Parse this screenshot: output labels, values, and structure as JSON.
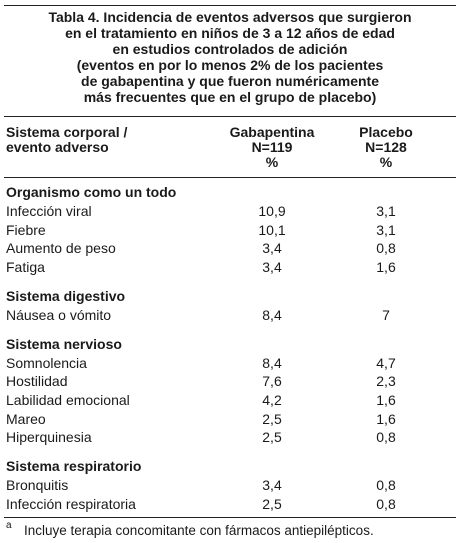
{
  "title": {
    "lines": [
      "Tabla 4. Incidencia de eventos adversos que surgieron",
      "en el tratamiento en niños de 3 a 12 años de edad",
      "en estudios controlados de adición",
      "(eventos en por lo menos 2% de los pacientes",
      "de gabapentina y que fueron numéricamente",
      "más frecuentes que en el grupo de placebo)"
    ]
  },
  "table": {
    "header": [
      [
        "Sistema corporal /",
        "evento adverso"
      ],
      [
        "Gabapentina",
        "N=119",
        "%"
      ],
      [
        "Placebo",
        "N=128",
        "%"
      ]
    ],
    "groups": [
      {
        "name": "Organismo como un todo",
        "rows": [
          [
            "Infección viral",
            "10,9",
            "3,1"
          ],
          [
            "Fiebre",
            "10,1",
            "3,1"
          ],
          [
            "Aumento de peso",
            "3,4",
            "0,8"
          ],
          [
            "Fatiga",
            "3,4",
            "1,6"
          ]
        ]
      },
      {
        "name": "Sistema digestivo",
        "rows": [
          [
            "Náusea o vómito",
            "8,4",
            "7"
          ]
        ]
      },
      {
        "name": "Sistema nervioso",
        "rows": [
          [
            "Somnolencia",
            "8,4",
            "4,7"
          ],
          [
            "Hostilidad",
            "7,6",
            "2,3"
          ],
          [
            "Labilidad emocional",
            "4,2",
            "1,6"
          ],
          [
            "Mareo",
            "2,5",
            "1,6"
          ],
          [
            "Hiperquinesia",
            "2,5",
            "0,8"
          ]
        ]
      },
      {
        "name": "Sistema respiratorio",
        "rows": [
          [
            "Bronquitis",
            "3,4",
            "0,8"
          ],
          [
            "Infección respiratoria",
            "2,5",
            "0,8"
          ]
        ]
      }
    ]
  },
  "footnote": {
    "marker": "a",
    "text": "Incluye terapia concomitante con fármacos antiepilépticos."
  }
}
